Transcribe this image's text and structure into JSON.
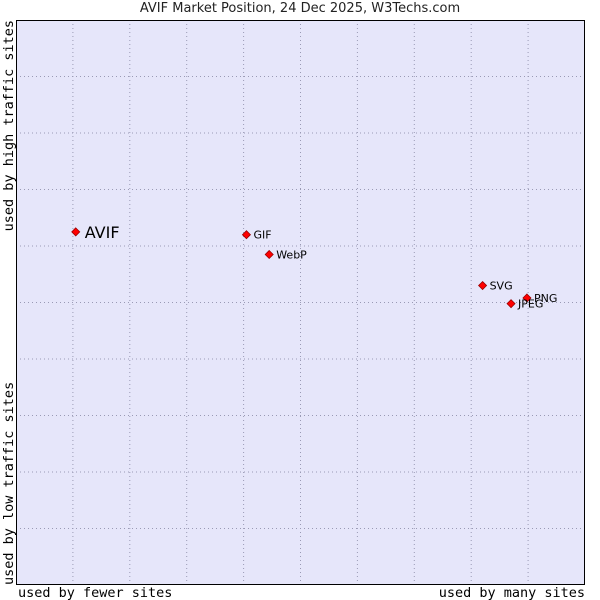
{
  "title": "AVIF Market Position, 24 Dec 2025, W3Techs.com",
  "chart_data": {
    "type": "scatter",
    "title": "AVIF Market Position, 24 Dec 2025, W3Techs.com",
    "xlabel_left": "used by fewer sites",
    "xlabel_right": "used by many sites",
    "ylabel_bottom": "used by low traffic sites",
    "ylabel_top": "used by high traffic sites",
    "xlim": [
      0,
      10
    ],
    "ylim": [
      0,
      10
    ],
    "grid": true,
    "colors": {
      "background": "#e6e6fa",
      "grid": "#9a9ab5",
      "point": "#ff0000",
      "point_outline": "#990000"
    },
    "points": [
      {
        "name": "AVIF",
        "x": 1.05,
        "y": 6.25,
        "highlight": true
      },
      {
        "name": "GIF",
        "x": 4.05,
        "y": 6.2,
        "highlight": false
      },
      {
        "name": "WebP",
        "x": 4.45,
        "y": 5.85,
        "highlight": false
      },
      {
        "name": "SVG",
        "x": 8.2,
        "y": 5.3,
        "highlight": false
      },
      {
        "name": "PNG",
        "x": 8.98,
        "y": 5.08,
        "highlight": false
      },
      {
        "name": "JPEG",
        "x": 8.7,
        "y": 4.98,
        "highlight": false
      }
    ]
  }
}
